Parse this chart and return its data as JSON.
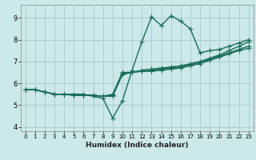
{
  "xlabel": "Humidex (Indice chaleur)",
  "xlim": [
    -0.5,
    23.5
  ],
  "ylim": [
    3.8,
    9.6
  ],
  "yticks": [
    4,
    5,
    6,
    7,
    8,
    9
  ],
  "xticks": [
    0,
    1,
    2,
    3,
    4,
    5,
    6,
    7,
    8,
    9,
    10,
    11,
    12,
    13,
    14,
    15,
    16,
    17,
    18,
    19,
    20,
    21,
    22,
    23
  ],
  "bg_color": "#cce8ea",
  "grid_color": "#aacdd4",
  "line_color": "#1a6b5a",
  "line_width": 1.0,
  "marker": "+",
  "marker_size": 4,
  "curves": [
    {
      "x": [
        0,
        1,
        2,
        3,
        4,
        5,
        6,
        7,
        8,
        9,
        10,
        11,
        12,
        13,
        14,
        15,
        16,
        17,
        18,
        19,
        20,
        21,
        22,
        23
      ],
      "y": [
        5.7,
        5.7,
        5.6,
        5.5,
        5.5,
        5.5,
        5.5,
        5.4,
        5.3,
        4.4,
        5.2,
        6.6,
        7.9,
        9.05,
        8.65,
        9.1,
        8.85,
        8.5,
        7.4,
        7.5,
        7.55,
        7.7,
        7.85,
        8.0
      ]
    },
    {
      "x": [
        0,
        1,
        2,
        3,
        4,
        5,
        6,
        7,
        8,
        9,
        10,
        11,
        12,
        13,
        14,
        15,
        16,
        17,
        18,
        19,
        20,
        21,
        22,
        23
      ],
      "y": [
        5.7,
        5.7,
        5.6,
        5.5,
        5.5,
        5.45,
        5.45,
        5.45,
        5.4,
        5.4,
        6.4,
        6.5,
        6.6,
        6.65,
        6.7,
        6.75,
        6.8,
        6.9,
        7.0,
        7.15,
        7.3,
        7.5,
        7.7,
        7.9
      ]
    },
    {
      "x": [
        0,
        1,
        2,
        3,
        4,
        5,
        6,
        7,
        8,
        9,
        10,
        11,
        12,
        13,
        14,
        15,
        16,
        17,
        18,
        19,
        20,
        21,
        22,
        23
      ],
      "y": [
        5.7,
        5.7,
        5.6,
        5.5,
        5.5,
        5.45,
        5.45,
        5.45,
        5.4,
        5.45,
        6.45,
        6.5,
        6.55,
        6.6,
        6.65,
        6.7,
        6.75,
        6.85,
        6.95,
        7.1,
        7.25,
        7.4,
        7.55,
        7.7
      ]
    },
    {
      "x": [
        0,
        1,
        2,
        3,
        4,
        5,
        6,
        7,
        8,
        9,
        10,
        11,
        12,
        13,
        14,
        15,
        16,
        17,
        18,
        19,
        20,
        21,
        22,
        23
      ],
      "y": [
        5.7,
        5.7,
        5.6,
        5.5,
        5.5,
        5.45,
        5.45,
        5.45,
        5.4,
        5.5,
        6.5,
        6.5,
        6.55,
        6.55,
        6.6,
        6.65,
        6.7,
        6.8,
        6.9,
        7.05,
        7.2,
        7.35,
        7.5,
        7.6
      ]
    }
  ]
}
